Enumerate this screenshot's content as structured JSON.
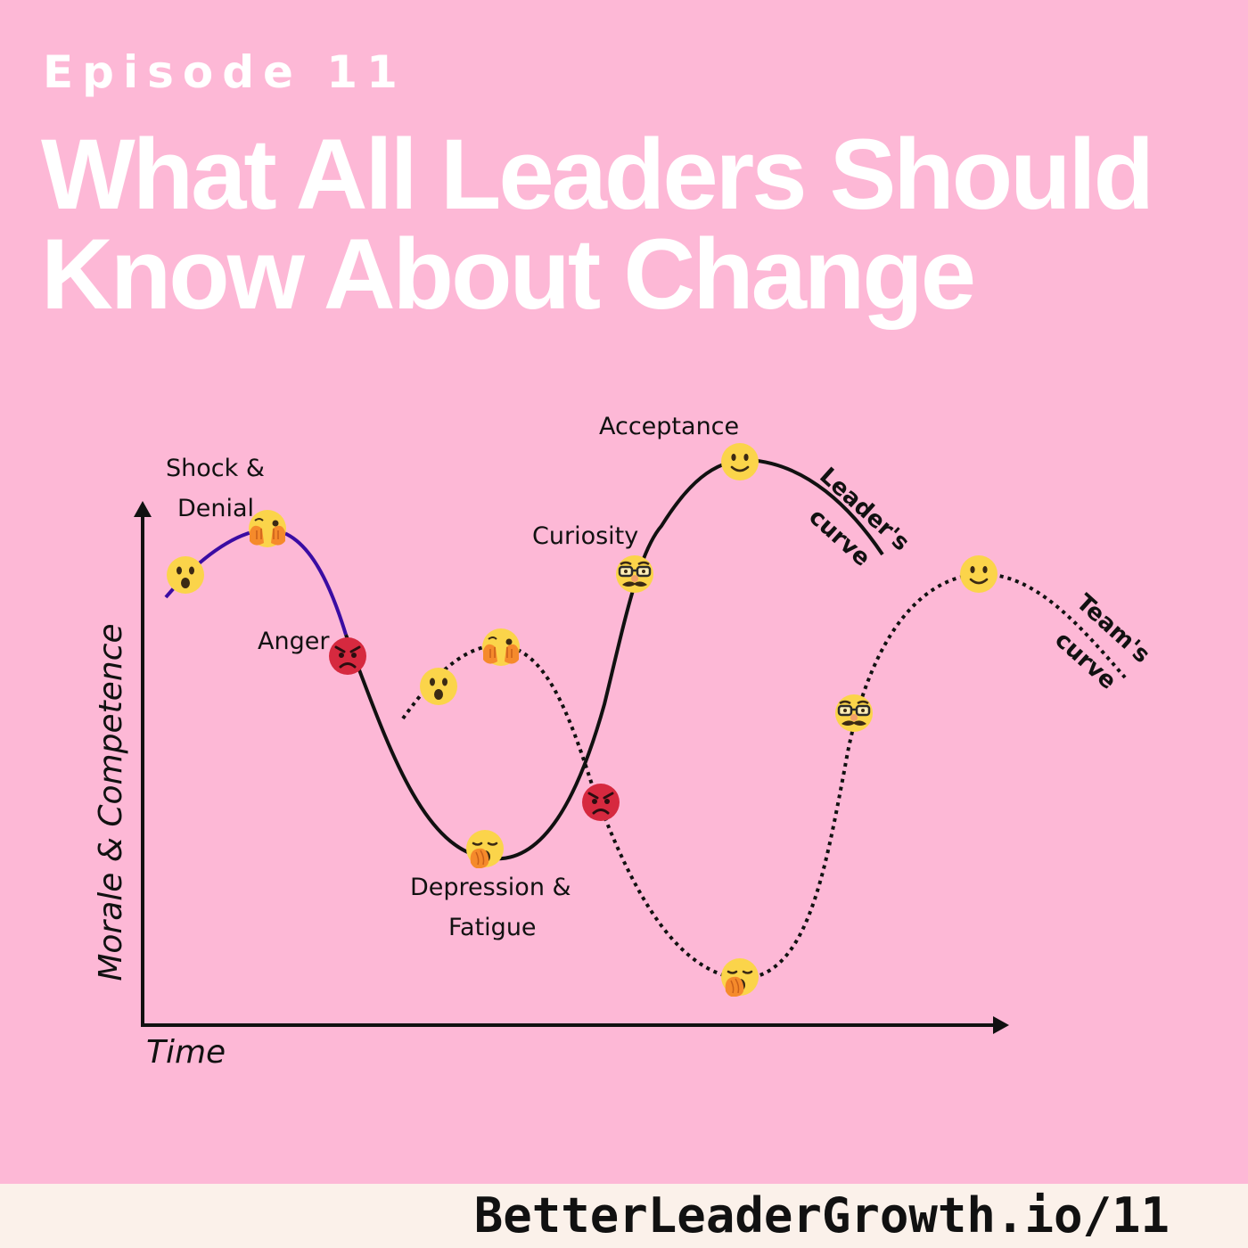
{
  "header": {
    "episode": "Episode 11",
    "title_line1": "What All Leaders Should",
    "title_line2": "Know About Change"
  },
  "diagram": {
    "y_axis_label": "Morale & Competence",
    "x_axis_label": "Time",
    "stages": {
      "shock_line1": "Shock &",
      "shock_line2": "Denial",
      "anger": "Anger",
      "depression_line1": "Depression &",
      "depression_line2": "Fatigue",
      "curiosity": "Curiosity",
      "acceptance": "Acceptance"
    },
    "curve_labels": {
      "leader_line1": "Leader's",
      "leader_line2": "curve",
      "team_line1": "Team's",
      "team_line2": "curve"
    },
    "icons": {
      "surprised": "surprised-face-icon",
      "peeking": "face-peeking-icon",
      "angry": "angry-face-icon",
      "yawning": "yawning-face-icon",
      "disguised": "disguised-face-icon",
      "smiling": "smiling-face-icon"
    },
    "colors": {
      "background": "#fdb8d6",
      "shock_segment": "#3a0ca3",
      "curve": "#111111",
      "emoji_yellow": "#fbd44a",
      "emoji_red": "#d6293f"
    }
  },
  "footer": {
    "url": "BetterLeaderGrowth.io/11"
  }
}
